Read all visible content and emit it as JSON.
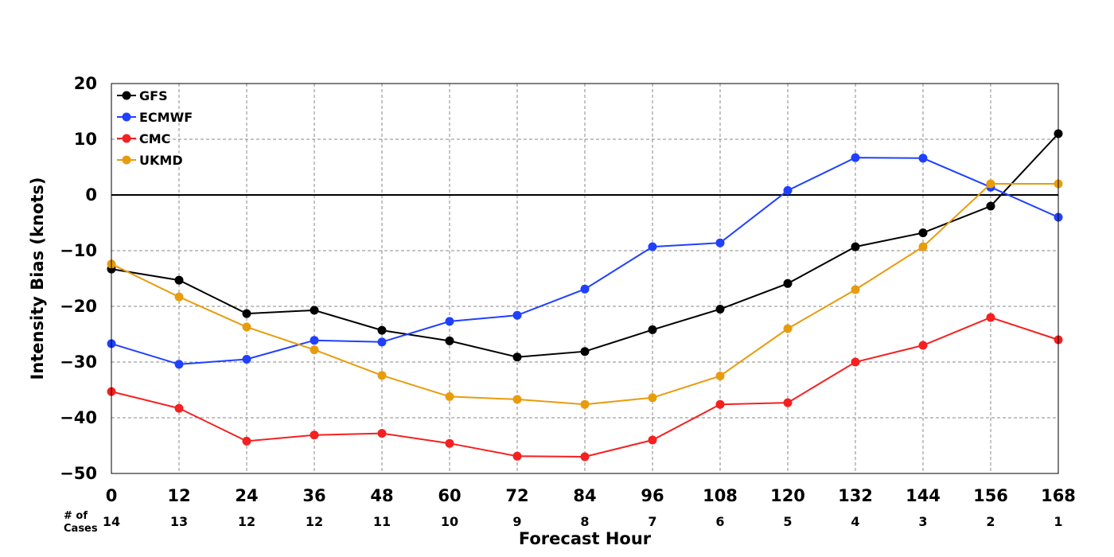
{
  "chart_data": {
    "type": "line",
    "xlabel": "Forecast Hour",
    "ylabel": "Intensity Bias (knots)",
    "xlim": [
      0,
      168
    ],
    "ylim": [
      -50,
      20
    ],
    "x": [
      0,
      12,
      24,
      36,
      48,
      60,
      72,
      84,
      96,
      108,
      120,
      132,
      144,
      156,
      168
    ],
    "x_ticks": [
      "0",
      "12",
      "24",
      "36",
      "48",
      "60",
      "72",
      "84",
      "96",
      "108",
      "120",
      "132",
      "144",
      "156",
      "168"
    ],
    "y_ticks": [
      20,
      10,
      0,
      -10,
      -20,
      -30,
      -40,
      -50
    ],
    "y_tick_labels": [
      "20",
      "10",
      "0",
      "−10",
      "−20",
      "−30",
      "−40",
      "−50"
    ],
    "grid": true,
    "zero_line": true,
    "legend_position": "top-left",
    "cases_label_line1": "# of",
    "cases_label_line2": "Cases",
    "cases": [
      "14",
      "13",
      "12",
      "12",
      "11",
      "10",
      "9",
      "8",
      "7",
      "6",
      "5",
      "4",
      "3",
      "2",
      "1"
    ],
    "series": [
      {
        "name": "GFS",
        "color": "#000000",
        "values": [
          -13.3,
          -15.3,
          -21.3,
          -20.7,
          -24.3,
          -26.2,
          -29.1,
          -28.1,
          -24.2,
          -20.5,
          -15.9,
          -9.3,
          -6.8,
          -2.0,
          11.0
        ]
      },
      {
        "name": "ECMWF",
        "color": "#2040ff",
        "values": [
          -26.7,
          -30.4,
          -29.5,
          -26.1,
          -26.4,
          -22.7,
          -21.6,
          -16.9,
          -9.3,
          -8.6,
          0.8,
          6.7,
          6.6,
          1.4,
          -4.0
        ]
      },
      {
        "name": "CMC",
        "color": "#f52020",
        "values": [
          -35.3,
          -38.3,
          -44.2,
          -43.1,
          -42.8,
          -44.6,
          -46.9,
          -47.0,
          -44.0,
          -37.6,
          -37.3,
          -30.0,
          -27.0,
          -22.0,
          -26.0
        ]
      },
      {
        "name": "UKMD",
        "color": "#e89c0c",
        "values": [
          -12.4,
          -18.3,
          -23.7,
          -27.8,
          -32.4,
          -36.2,
          -36.7,
          -37.6,
          -36.4,
          -32.5,
          -24.0,
          -17.0,
          -9.3,
          2.0,
          2.0
        ]
      }
    ]
  }
}
